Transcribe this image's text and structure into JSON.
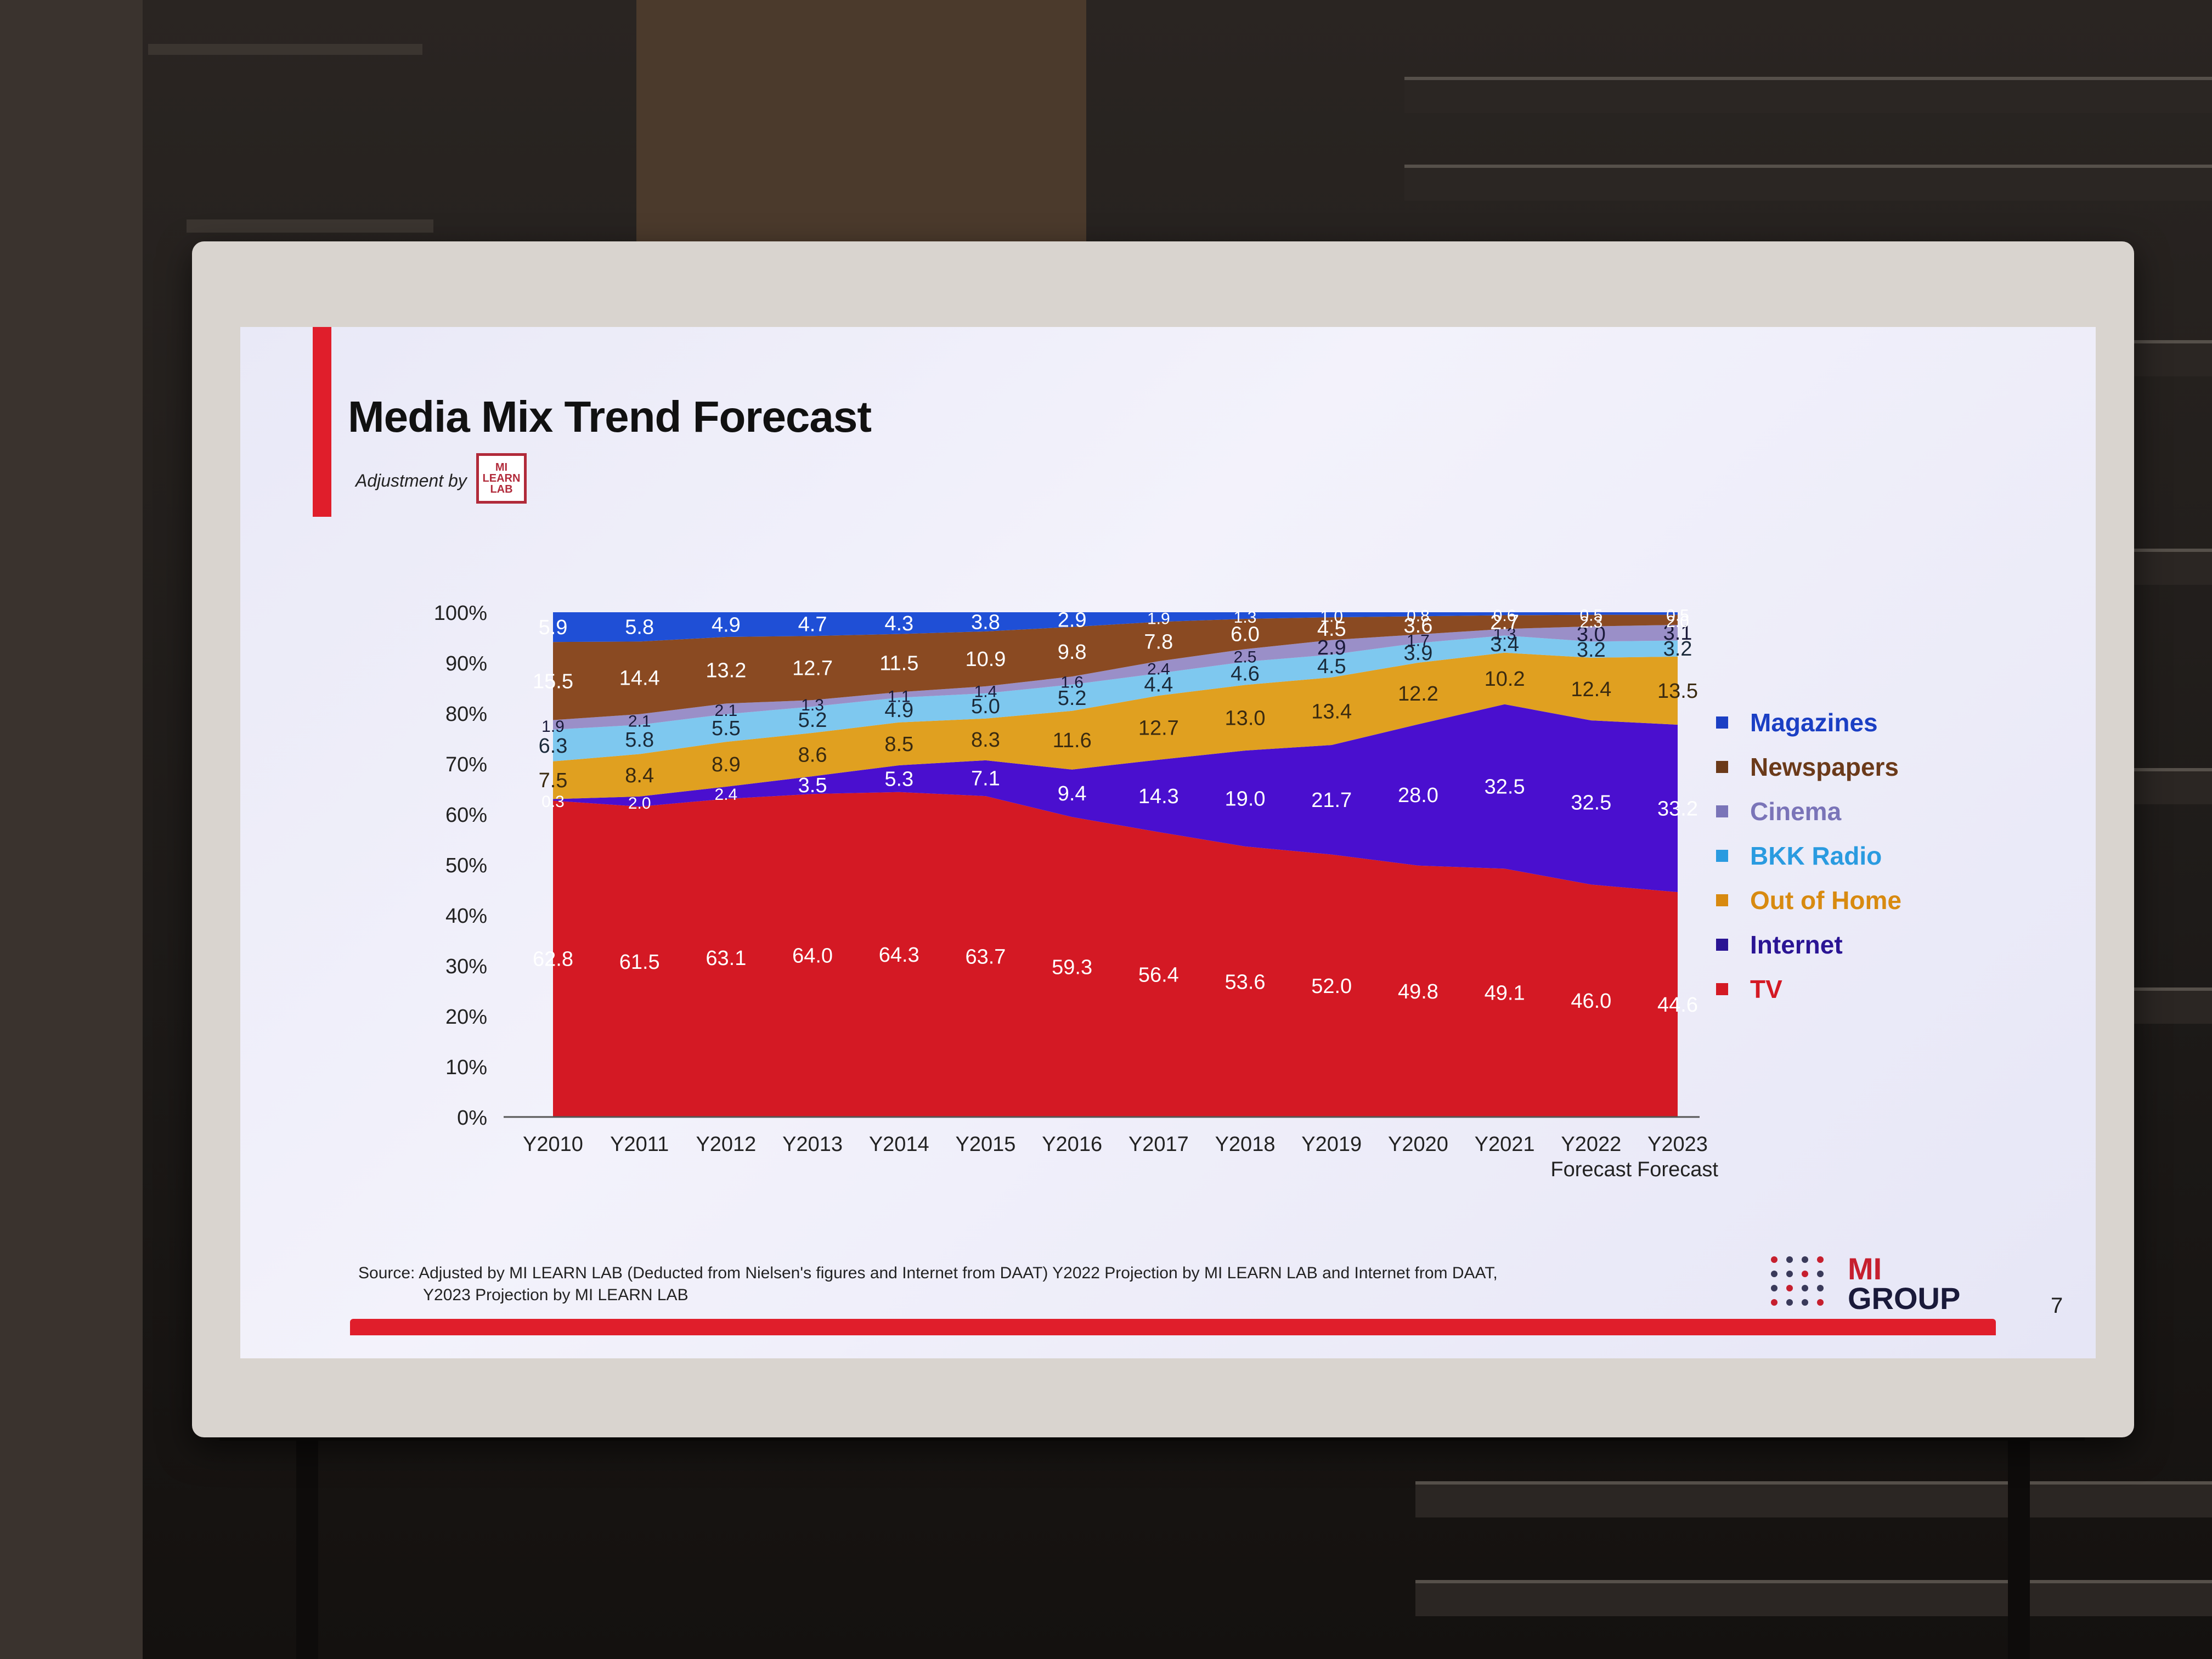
{
  "slide": {
    "title": "Media Mix Trend Forecast",
    "adjustment_label": "Adjustment by",
    "lab_logo_text": "MI LEARN LAB",
    "source_line1": "Source: Adjusted by MI LEARN LAB (Deducted  from Nielsen's figures and Internet from DAAT) Y2022 Projection by MI LEARN LAB and Internet from DAAT,",
    "source_line2": "Y2023 Projection by MI LEARN LAB",
    "brand_line1": "MI",
    "brand_line2": "GROUP",
    "page_number": "7"
  },
  "chart_data": {
    "type": "area",
    "stacked": true,
    "percent": true,
    "categories": [
      "Y2010",
      "Y2011",
      "Y2012",
      "Y2013",
      "Y2014",
      "Y2015",
      "Y2016",
      "Y2017",
      "Y2018",
      "Y2019",
      "Y2020",
      "Y2021",
      "Y2022",
      "Y2023"
    ],
    "category_sublabels": [
      "",
      "",
      "",
      "",
      "",
      "",
      "",
      "",
      "",
      "",
      "",
      "",
      "Forecast",
      "Forecast"
    ],
    "ylim": [
      0,
      100
    ],
    "yticks": [
      "0%",
      "10%",
      "20%",
      "30%",
      "40%",
      "50%",
      "60%",
      "70%",
      "80%",
      "90%",
      "100%"
    ],
    "legend_position": "right",
    "series": [
      {
        "name": "TV",
        "color": "#d41924",
        "label_color": "#ffffff",
        "values": [
          62.8,
          61.5,
          63.1,
          64.0,
          64.3,
          63.7,
          59.3,
          56.4,
          53.6,
          52.0,
          49.8,
          49.1,
          46.0,
          44.6
        ]
      },
      {
        "name": "Internet",
        "color": "#4a0fcf",
        "label_color": "#ffffff",
        "values": [
          0.3,
          2.0,
          2.4,
          3.5,
          5.3,
          7.1,
          9.4,
          14.3,
          19.0,
          21.7,
          28.0,
          32.5,
          32.5,
          33.2
        ]
      },
      {
        "name": "Out of Home",
        "color": "#e0a020",
        "label_color": "#3a2a10",
        "values": [
          7.5,
          8.4,
          8.9,
          8.6,
          8.5,
          8.3,
          11.6,
          12.7,
          13.0,
          13.4,
          12.2,
          10.2,
          12.4,
          13.5
        ]
      },
      {
        "name": "BKK Radio",
        "color": "#7ec8ef",
        "label_color": "#1a2a3a",
        "values": [
          6.3,
          5.8,
          5.5,
          5.2,
          4.9,
          5.0,
          5.2,
          4.4,
          4.6,
          4.5,
          3.9,
          3.4,
          3.2,
          3.2
        ]
      },
      {
        "name": "Cinema",
        "color": "#9a8fc8",
        "label_color": "#1a1a3a",
        "values": [
          1.9,
          2.1,
          2.1,
          1.3,
          1.1,
          1.4,
          1.6,
          2.4,
          2.5,
          2.9,
          1.7,
          1.3,
          3.0,
          3.1
        ]
      },
      {
        "name": "Newspapers",
        "color": "#8a4a22",
        "label_color": "#ffffff",
        "values": [
          15.5,
          14.4,
          13.2,
          12.7,
          11.5,
          10.9,
          9.8,
          7.8,
          6.0,
          4.5,
          3.6,
          2.7,
          2.3,
          2.0
        ]
      },
      {
        "name": "Magazines",
        "color": "#1f4fd6",
        "label_color": "#ffffff",
        "values": [
          5.9,
          5.8,
          4.9,
          4.7,
          4.3,
          3.8,
          2.9,
          1.9,
          1.3,
          1.0,
          0.8,
          0.6,
          0.5,
          0.5
        ]
      }
    ],
    "legend": [
      {
        "name": "Magazines",
        "color": "#1b3fc4"
      },
      {
        "name": "Newspapers",
        "color": "#6b3a1a"
      },
      {
        "name": "Cinema",
        "color": "#7a74b8"
      },
      {
        "name": "BKK Radio",
        "color": "#2a9be0"
      },
      {
        "name": "Out of Home",
        "color": "#d88a10"
      },
      {
        "name": "Internet",
        "color": "#2a1494"
      },
      {
        "name": "TV",
        "color": "#d41924"
      }
    ]
  }
}
